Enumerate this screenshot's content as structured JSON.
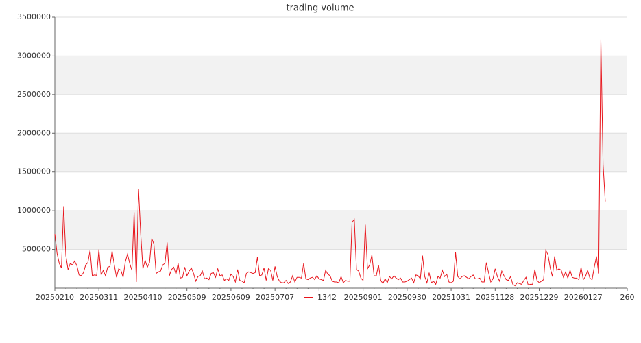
{
  "chart_data": {
    "type": "line",
    "title": "trading volume",
    "categories": [
      "20250210",
      null,
      null,
      null,
      null,
      null,
      null,
      null,
      null,
      null,
      null,
      null,
      null,
      null,
      null,
      null,
      null,
      null,
      null,
      null,
      "20250311",
      null,
      null,
      null,
      null,
      null,
      null,
      null,
      null,
      null,
      null,
      null,
      null,
      null,
      null,
      null,
      null,
      null,
      null,
      null,
      "20250410",
      null,
      null,
      null,
      null,
      null,
      null,
      null,
      null,
      null,
      null,
      null,
      null,
      null,
      null,
      null,
      null,
      null,
      null,
      null,
      "20250509",
      null,
      null,
      null,
      null,
      null,
      null,
      null,
      null,
      null,
      null,
      null,
      null,
      null,
      null,
      null,
      null,
      null,
      null,
      null,
      "20250609",
      null,
      null,
      null,
      null,
      null,
      null,
      null,
      null,
      null,
      null,
      null,
      null,
      null,
      null,
      null,
      null,
      null,
      null,
      null,
      "20250707",
      null,
      null,
      null,
      null,
      null,
      null,
      null,
      null,
      null,
      null,
      null,
      null,
      null,
      null,
      null,
      null,
      null,
      null,
      null,
      null,
      null,
      null,
      null,
      null,
      null,
      null,
      null,
      null,
      null,
      null,
      null,
      null,
      null,
      null,
      null,
      null,
      null,
      null,
      null,
      "20250901",
      null,
      null,
      null,
      null,
      null,
      null,
      null,
      null,
      null,
      null,
      null,
      null,
      null,
      null,
      null,
      null,
      null,
      null,
      null,
      "20250930",
      null,
      null,
      null,
      null,
      null,
      null,
      null,
      null,
      null,
      null,
      null,
      null,
      null,
      null,
      null,
      null,
      null,
      null,
      null,
      "20251031",
      null,
      null,
      null,
      null,
      null,
      null,
      null,
      null,
      null,
      null,
      null,
      null,
      null,
      null,
      null,
      null,
      null,
      null,
      null,
      "20251128",
      null,
      null,
      null,
      null,
      null,
      null,
      null,
      null,
      null,
      null,
      null,
      null,
      null,
      null,
      null,
      null,
      null,
      null,
      null,
      "20251229",
      null,
      null,
      null,
      null,
      null,
      null,
      null,
      null,
      null,
      null,
      null,
      null,
      null,
      null,
      null,
      null,
      null,
      null,
      null,
      "20260127",
      null,
      null,
      null,
      null,
      null,
      null,
      null,
      null,
      null,
      null,
      null,
      null,
      null,
      null,
      null,
      null,
      null,
      null,
      null,
      "260"
    ],
    "series": [
      {
        "name": "1342",
        "color": "#e8141b",
        "values": [
          700000,
          450000,
          320000,
          260000,
          1050000,
          420000,
          240000,
          320000,
          300000,
          350000,
          290000,
          170000,
          160000,
          200000,
          300000,
          330000,
          490000,
          160000,
          170000,
          165000,
          500000,
          170000,
          230000,
          160000,
          270000,
          280000,
          480000,
          300000,
          140000,
          250000,
          230000,
          140000,
          340000,
          440000,
          320000,
          230000,
          980000,
          80000,
          1280000,
          700000,
          250000,
          360000,
          270000,
          330000,
          640000,
          570000,
          190000,
          210000,
          220000,
          300000,
          320000,
          590000,
          160000,
          240000,
          270000,
          180000,
          320000,
          130000,
          140000,
          270000,
          160000,
          220000,
          260000,
          190000,
          90000,
          150000,
          160000,
          220000,
          120000,
          130000,
          110000,
          190000,
          200000,
          140000,
          250000,
          160000,
          170000,
          100000,
          120000,
          100000,
          180000,
          150000,
          80000,
          240000,
          100000,
          90000,
          70000,
          190000,
          210000,
          200000,
          190000,
          200000,
          400000,
          160000,
          170000,
          260000,
          100000,
          250000,
          230000,
          100000,
          280000,
          150000,
          90000,
          70000,
          70000,
          100000,
          60000,
          80000,
          160000,
          80000,
          140000,
          140000,
          130000,
          320000,
          120000,
          110000,
          130000,
          140000,
          110000,
          160000,
          120000,
          110000,
          100000,
          230000,
          180000,
          160000,
          90000,
          80000,
          80000,
          70000,
          150000,
          70000,
          100000,
          90000,
          90000,
          850000,
          890000,
          240000,
          220000,
          130000,
          100000,
          820000,
          250000,
          300000,
          430000,
          160000,
          160000,
          300000,
          100000,
          60000,
          120000,
          70000,
          150000,
          120000,
          160000,
          130000,
          110000,
          130000,
          80000,
          80000,
          90000,
          110000,
          130000,
          70000,
          170000,
          160000,
          120000,
          420000,
          150000,
          70000,
          200000,
          70000,
          90000,
          50000,
          150000,
          130000,
          230000,
          150000,
          180000,
          80000,
          70000,
          90000,
          460000,
          150000,
          120000,
          150000,
          160000,
          140000,
          120000,
          150000,
          170000,
          120000,
          120000,
          130000,
          80000,
          80000,
          330000,
          200000,
          80000,
          120000,
          250000,
          150000,
          90000,
          220000,
          160000,
          110000,
          100000,
          150000,
          50000,
          30000,
          70000,
          60000,
          50000,
          100000,
          140000,
          40000,
          50000,
          50000,
          240000,
          100000,
          70000,
          90000,
          110000,
          490000,
          430000,
          260000,
          150000,
          410000,
          230000,
          250000,
          230000,
          140000,
          210000,
          130000,
          230000,
          140000,
          130000,
          130000,
          110000,
          270000,
          110000,
          150000,
          230000,
          130000,
          110000,
          270000,
          410000,
          190000,
          3210000,
          1600000,
          1120000,
          null,
          null,
          null,
          null,
          null,
          null,
          null,
          null,
          null,
          null
        ]
      }
    ],
    "ylim": [
      0,
      3500000
    ],
    "yticks": [
      500000,
      1000000,
      1500000,
      2000000,
      2500000,
      3000000,
      3500000
    ],
    "grid": true,
    "legend": "bottom"
  }
}
